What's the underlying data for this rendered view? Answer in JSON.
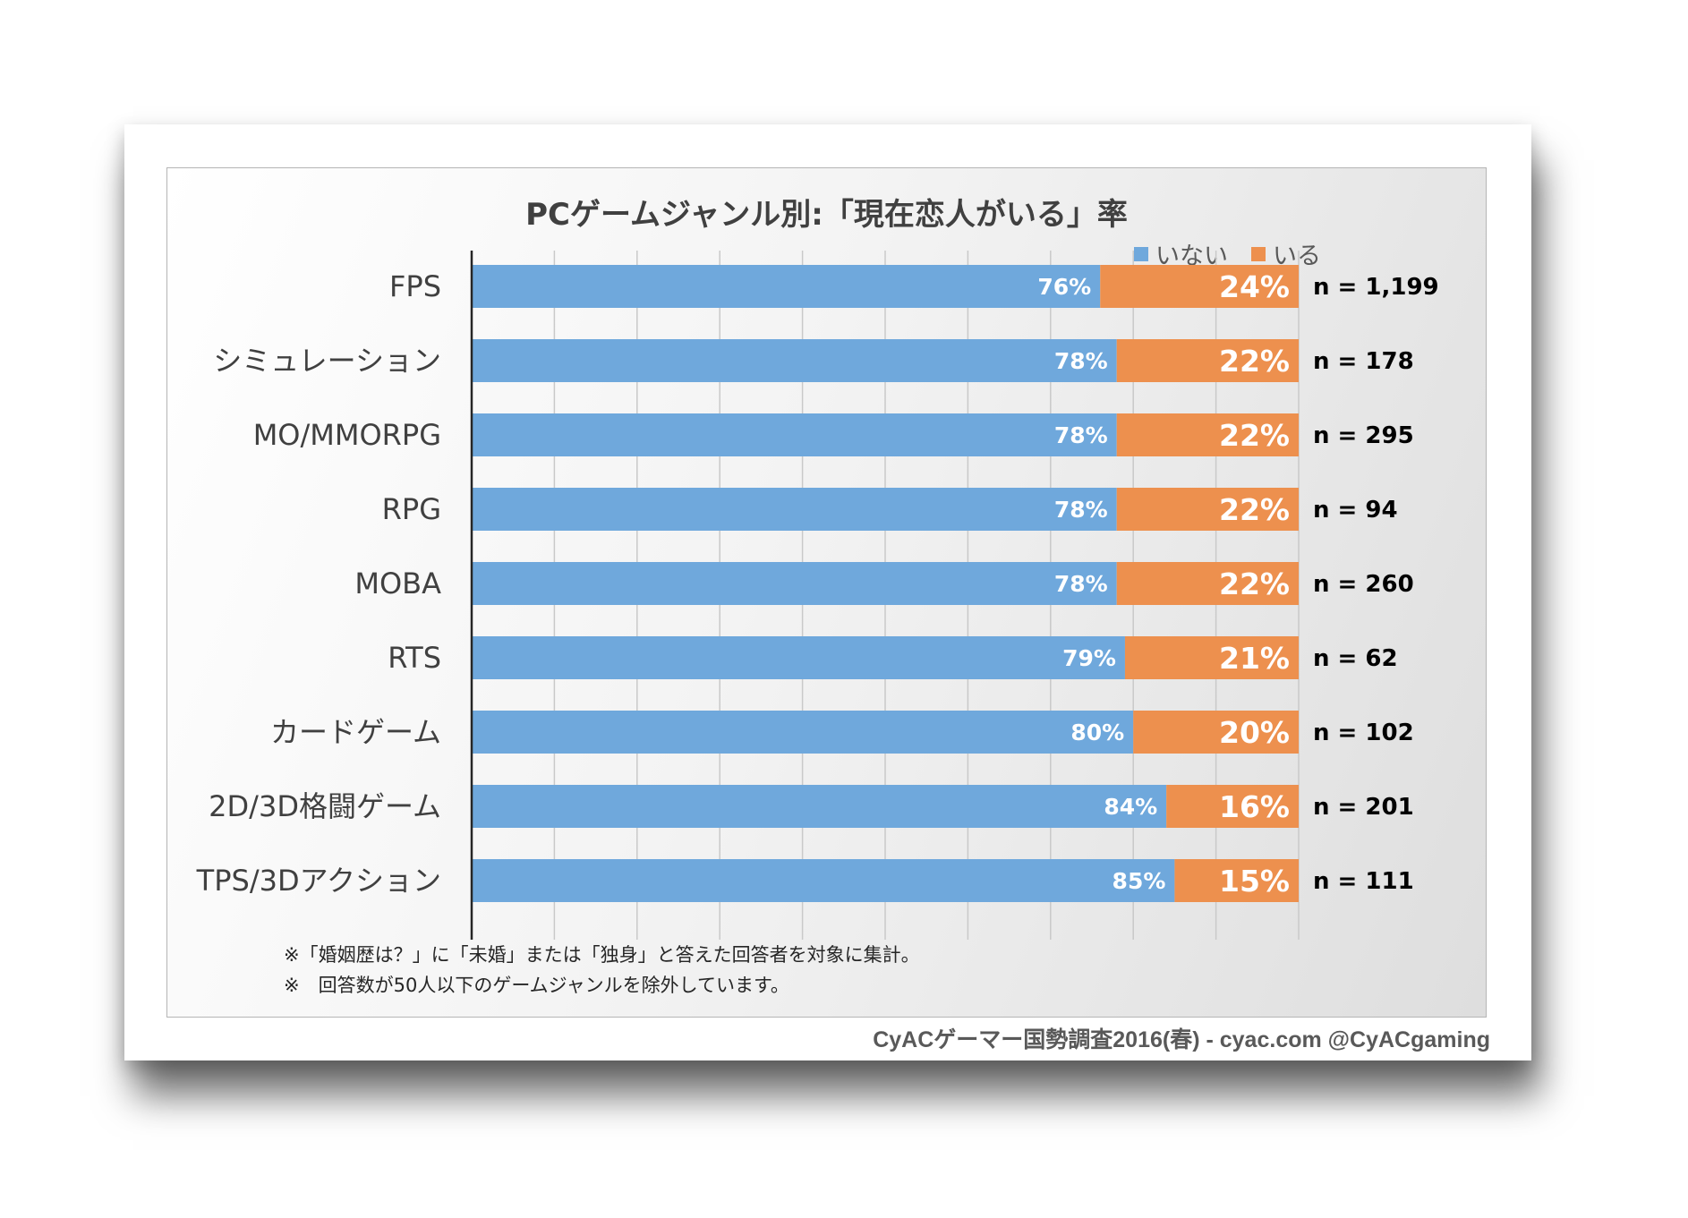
{
  "chart_data": {
    "type": "bar",
    "orientation": "horizontal",
    "stacked": true,
    "title": "PCゲームジャンル別:「現在恋人がいる」率",
    "categories": [
      "FPS",
      "シミュレーション",
      "MO/MMORPG",
      "RPG",
      "MOBA",
      "RTS",
      "カードゲーム",
      "2D/3D格闘ゲーム",
      "TPS/3Dアクション"
    ],
    "series": [
      {
        "name": "いない",
        "color": "#6fa8dc",
        "values": [
          76,
          78,
          78,
          78,
          78,
          79,
          80,
          84,
          85
        ],
        "labels": [
          "76%",
          "78%",
          "78%",
          "78%",
          "78%",
          "79%",
          "80%",
          "84%",
          "85%"
        ]
      },
      {
        "name": "いる",
        "color": "#ed904e",
        "values": [
          24,
          22,
          22,
          22,
          22,
          21,
          20,
          16,
          15
        ],
        "labels": [
          "24%",
          "22%",
          "22%",
          "22%",
          "22%",
          "21%",
          "20%",
          "16%",
          "15%"
        ]
      }
    ],
    "sample_sizes": [
      "n = 1,199",
      "n = 178",
      "n = 295",
      "n = 94",
      "n = 260",
      "n = 62",
      "n = 102",
      "n = 201",
      "n = 111"
    ],
    "xlim": [
      0,
      100
    ],
    "grid": true,
    "legend_position": "top-right"
  },
  "notes": [
    "※「婚姻歴は？」に「未婚」または「独身」と答えた回答者を対象に集計。",
    "※　回答数が50人以下のゲームジャンルを除外しています。"
  ],
  "footer": "CyACゲーマー国勢調査2016(春) - cyac.com @CyACgaming"
}
